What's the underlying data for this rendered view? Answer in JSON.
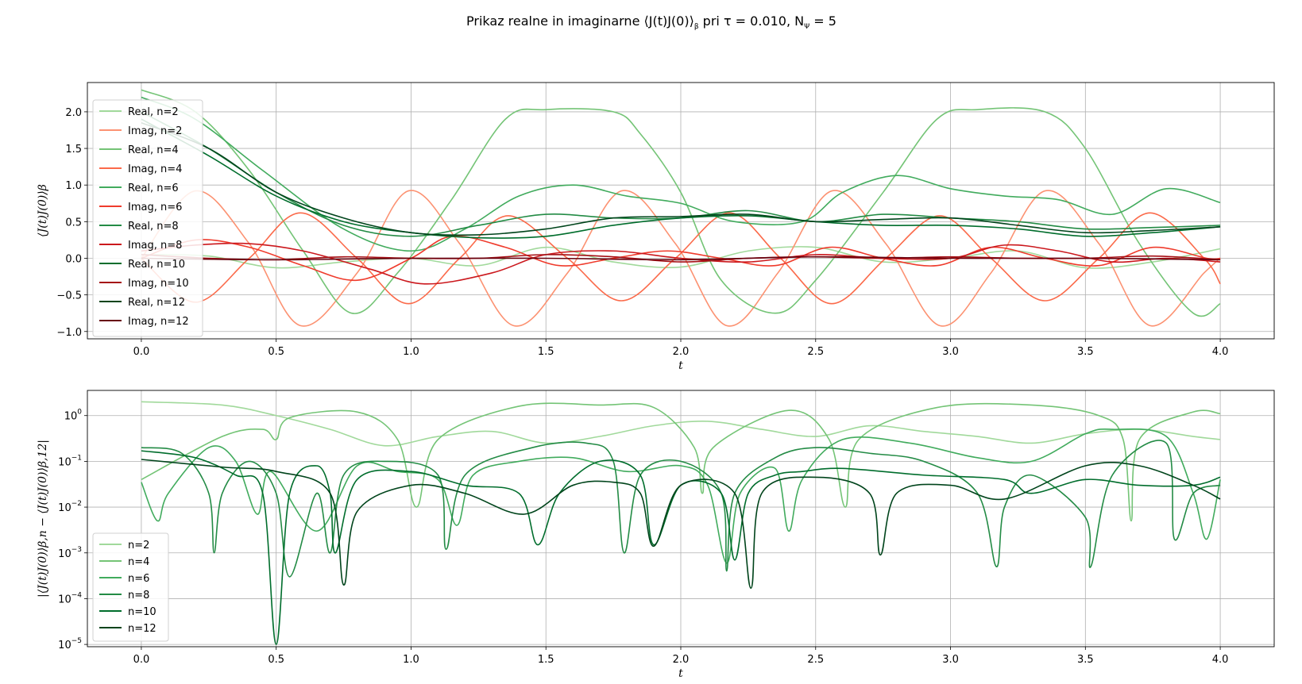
{
  "figure": {
    "title_pre": "Prikaz realne in imaginarne ⟨J(t)J(0)⟩",
    "title_sub": "β",
    "title_mid": " pri τ = 0.010, N",
    "title_sub2": "Ψ",
    "title_post": " = 5"
  },
  "chart_data": [
    {
      "type": "line",
      "xlabel": "t",
      "ylabel": "⟨J(t)J(0)⟩β",
      "xlim": [
        -0.2,
        4.2
      ],
      "ylim": [
        -1.1,
        2.4
      ],
      "xticks": [
        "0.0",
        "0.5",
        "1.0",
        "1.5",
        "2.0",
        "2.5",
        "3.0",
        "3.5",
        "4.0"
      ],
      "yticks": [
        "2.0",
        "1.5",
        "1.0",
        "0.5",
        "0.0",
        "−0.5",
        "−1.0"
      ],
      "grid": true,
      "legend_placement": "upper-left",
      "series": [
        {
          "name": "Real, n=2",
          "color": "#a1d99b",
          "x": [
            0,
            0.25,
            0.5,
            0.75,
            1.0,
            1.25,
            1.5,
            1.75,
            2.0,
            2.25,
            2.5,
            2.75,
            3.0,
            3.25,
            3.5,
            3.75,
            4.0
          ],
          "y": [
            0.05,
            0.03,
            -0.13,
            -0.05,
            0.0,
            -0.1,
            0.15,
            -0.05,
            -0.12,
            0.1,
            0.15,
            -0.05,
            0.0,
            0.1,
            -0.13,
            -0.05,
            0.13
          ]
        },
        {
          "name": "Imag, n=2",
          "color": "#fc9272",
          "x": [
            0,
            0.2,
            0.4,
            0.59,
            0.8,
            0.99,
            1.18,
            1.38,
            1.58,
            1.78,
            1.98,
            2.17,
            2.36,
            2.56,
            2.76,
            2.96,
            3.15,
            3.35,
            3.55,
            3.74,
            3.94,
            4.0
          ],
          "y": [
            0.0,
            0.92,
            0.2,
            -0.92,
            -0.2,
            0.92,
            0.2,
            -0.92,
            -0.2,
            0.92,
            0.2,
            -0.92,
            -0.2,
            0.92,
            0.2,
            -0.92,
            -0.2,
            0.92,
            0.2,
            -0.92,
            -0.2,
            0.0
          ]
        },
        {
          "name": "Real, n=4",
          "color": "#74c476",
          "x": [
            0,
            0.2,
            0.4,
            0.6,
            0.78,
            0.95,
            1.15,
            1.35,
            1.5,
            1.75,
            1.85,
            2.0,
            2.15,
            2.35,
            2.5,
            2.75,
            2.95,
            3.1,
            3.35,
            3.5,
            3.7,
            3.9,
            4.0
          ],
          "y": [
            2.3,
            2.0,
            1.2,
            0.1,
            -0.75,
            -0.2,
            0.8,
            1.9,
            2.03,
            2.0,
            1.7,
            0.9,
            -0.3,
            -0.75,
            -0.3,
            0.9,
            1.9,
            2.03,
            2.0,
            1.5,
            0.2,
            -0.75,
            -0.62
          ]
        },
        {
          "name": "Imag, n=4",
          "color": "#fb6a4a",
          "x": [
            0,
            0.2,
            0.4,
            0.59,
            0.8,
            0.99,
            1.18,
            1.36,
            1.58,
            1.78,
            1.98,
            2.18,
            2.37,
            2.56,
            2.76,
            2.96,
            3.15,
            3.35,
            3.55,
            3.74,
            3.94,
            4.0
          ],
          "y": [
            0.0,
            -0.6,
            0.0,
            0.62,
            0.0,
            -0.62,
            0.0,
            0.58,
            0.0,
            -0.58,
            0.0,
            0.62,
            0.0,
            -0.62,
            0.0,
            0.58,
            0.0,
            -0.58,
            0.0,
            0.62,
            0.0,
            -0.35
          ]
        },
        {
          "name": "Real, n=6",
          "color": "#41ab5d",
          "x": [
            0,
            0.2,
            0.45,
            0.75,
            1.0,
            1.2,
            1.4,
            1.6,
            1.8,
            2.0,
            2.2,
            2.45,
            2.6,
            2.8,
            3.0,
            3.2,
            3.4,
            3.6,
            3.8,
            4.0
          ],
          "y": [
            2.2,
            1.9,
            1.2,
            0.4,
            0.1,
            0.4,
            0.85,
            1.0,
            0.85,
            0.75,
            0.5,
            0.5,
            0.9,
            1.13,
            0.95,
            0.85,
            0.8,
            0.6,
            0.95,
            0.76
          ]
        },
        {
          "name": "Imag, n=6",
          "color": "#ef3b2c",
          "x": [
            0,
            0.2,
            0.4,
            0.6,
            0.8,
            1.0,
            1.15,
            1.35,
            1.55,
            1.75,
            1.95,
            2.15,
            2.35,
            2.55,
            2.75,
            2.95,
            3.15,
            3.35,
            3.55,
            3.75,
            3.95,
            4.0
          ],
          "y": [
            0.0,
            0.25,
            0.15,
            -0.1,
            -0.3,
            0.0,
            0.3,
            0.15,
            -0.1,
            0.0,
            0.1,
            0.0,
            -0.1,
            0.15,
            0.0,
            -0.1,
            0.15,
            0.0,
            -0.1,
            0.15,
            0.0,
            0.0
          ]
        },
        {
          "name": "Real, n=8",
          "color": "#238b45",
          "x": [
            0,
            0.25,
            0.5,
            0.75,
            1.0,
            1.25,
            1.5,
            1.75,
            2.0,
            2.25,
            2.5,
            2.75,
            3.0,
            3.25,
            3.5,
            3.75,
            4.0
          ],
          "y": [
            2.0,
            1.5,
            0.9,
            0.45,
            0.3,
            0.45,
            0.6,
            0.55,
            0.55,
            0.65,
            0.5,
            0.6,
            0.55,
            0.5,
            0.4,
            0.42,
            0.45
          ]
        },
        {
          "name": "Imag, n=8",
          "color": "#cb181d",
          "x": [
            0,
            0.2,
            0.4,
            0.6,
            0.85,
            1.05,
            1.3,
            1.5,
            1.75,
            2.0,
            2.25,
            2.5,
            2.75,
            3.0,
            3.2,
            3.4,
            3.6,
            3.8,
            4.0
          ],
          "y": [
            0.1,
            0.18,
            0.2,
            0.1,
            -0.15,
            -0.35,
            -0.2,
            0.05,
            0.1,
            0.0,
            -0.05,
            0.05,
            0.0,
            0.0,
            0.18,
            0.1,
            -0.05,
            0.0,
            -0.05
          ]
        },
        {
          "name": "Real, n=10",
          "color": "#006d2c",
          "x": [
            0,
            0.25,
            0.5,
            0.75,
            1.0,
            1.25,
            1.5,
            1.75,
            2.0,
            2.25,
            2.5,
            2.75,
            3.0,
            3.25,
            3.5,
            3.75,
            4.0
          ],
          "y": [
            1.9,
            1.4,
            0.85,
            0.5,
            0.35,
            0.28,
            0.3,
            0.45,
            0.55,
            0.58,
            0.5,
            0.45,
            0.45,
            0.4,
            0.3,
            0.35,
            0.43
          ]
        },
        {
          "name": "Imag, n=10",
          "color": "#a50f15",
          "x": [
            0,
            0.25,
            0.5,
            0.75,
            1.0,
            1.25,
            1.5,
            1.75,
            2.0,
            2.25,
            2.5,
            2.75,
            3.0,
            3.25,
            3.5,
            3.75,
            4.0
          ],
          "y": [
            0.05,
            0.0,
            -0.02,
            0.02,
            0.0,
            0.0,
            0.05,
            0.02,
            -0.05,
            0.0,
            0.02,
            0.0,
            0.02,
            0.0,
            0.0,
            0.03,
            -0.02
          ]
        },
        {
          "name": "Real, n=12",
          "color": "#00441b",
          "x": [
            0,
            0.25,
            0.5,
            0.75,
            1.0,
            1.25,
            1.5,
            1.75,
            2.0,
            2.25,
            2.5,
            2.75,
            3.0,
            3.25,
            3.5,
            3.75,
            4.0
          ],
          "y": [
            1.85,
            1.5,
            0.9,
            0.55,
            0.35,
            0.32,
            0.4,
            0.55,
            0.57,
            0.6,
            0.5,
            0.53,
            0.55,
            0.45,
            0.35,
            0.38,
            0.43
          ]
        },
        {
          "name": "Imag, n=12",
          "color": "#67000d",
          "x": [
            0,
            0.5,
            1.0,
            1.5,
            2.0,
            2.5,
            3.0,
            3.5,
            4.0
          ],
          "y": [
            0.0,
            -0.02,
            0.0,
            0.0,
            -0.02,
            0.02,
            0.0,
            0.0,
            -0.02
          ]
        }
      ]
    },
    {
      "type": "line",
      "xlabel": "t",
      "ylabel": "|⟨J(t)J(0)⟩β,n − ⟨J(t)J(0)⟩β,12|",
      "yscale": "log",
      "xlim": [
        -0.2,
        4.2
      ],
      "ylim_exp": [
        -5.05,
        0.55
      ],
      "xticks": [
        "0.0",
        "0.5",
        "1.0",
        "1.5",
        "2.0",
        "2.5",
        "3.0",
        "3.5",
        "4.0"
      ],
      "yticks": [
        "0",
        "-1",
        "-2",
        "-3",
        "-4",
        "-5"
      ],
      "grid": true,
      "legend_placement": "lower-left",
      "series": [
        {
          "name": "n=2",
          "color": "#a1d99b",
          "x": [
            0,
            0.3,
            0.5,
            0.7,
            0.9,
            1.1,
            1.3,
            1.5,
            1.7,
            1.9,
            2.1,
            2.3,
            2.5,
            2.7,
            2.9,
            3.1,
            3.3,
            3.5,
            3.7,
            3.9,
            4.0
          ],
          "y": [
            2.0,
            1.7,
            1.0,
            0.5,
            0.22,
            0.35,
            0.45,
            0.25,
            0.35,
            0.6,
            0.75,
            0.5,
            0.35,
            0.6,
            0.45,
            0.35,
            0.25,
            0.4,
            0.5,
            0.35,
            0.3
          ]
        },
        {
          "name": "n=4",
          "color": "#74c476",
          "x": [
            0,
            0.3,
            0.45,
            0.5,
            0.55,
            0.8,
            0.95,
            1.02,
            1.1,
            1.4,
            1.7,
            1.9,
            2.05,
            2.08,
            2.12,
            2.4,
            2.55,
            2.61,
            2.66,
            2.95,
            3.3,
            3.55,
            3.64,
            3.67,
            3.7,
            3.9,
            4.0
          ],
          "y": [
            0.04,
            0.35,
            0.5,
            0.3,
            0.9,
            1.2,
            0.3,
            0.01,
            0.3,
            1.6,
            1.7,
            1.5,
            0.2,
            0.02,
            0.2,
            1.3,
            0.3,
            0.01,
            0.3,
            1.5,
            1.7,
            1.0,
            0.3,
            0.005,
            0.3,
            1.2,
            1.1
          ]
        },
        {
          "name": "n=6",
          "color": "#41ab5d",
          "x": [
            0,
            0.06,
            0.1,
            0.25,
            0.35,
            0.43,
            0.48,
            0.65,
            0.8,
            0.95,
            1.1,
            1.17,
            1.23,
            1.4,
            1.6,
            1.8,
            2.0,
            2.1,
            2.17,
            2.22,
            2.35,
            2.4,
            2.45,
            2.6,
            2.85,
            3.1,
            3.3,
            3.5,
            3.6,
            3.8,
            3.9,
            3.95,
            4.0
          ],
          "y": [
            0.035,
            0.005,
            0.02,
            0.2,
            0.1,
            0.007,
            0.06,
            0.003,
            0.08,
            0.06,
            0.04,
            0.004,
            0.05,
            0.1,
            0.12,
            0.06,
            0.08,
            0.03,
            0.0006,
            0.02,
            0.07,
            0.003,
            0.04,
            0.3,
            0.25,
            0.12,
            0.1,
            0.4,
            0.5,
            0.35,
            0.02,
            0.002,
            0.04
          ]
        },
        {
          "name": "n=8",
          "color": "#238b45",
          "x": [
            0,
            0.15,
            0.25,
            0.27,
            0.3,
            0.4,
            0.5,
            0.55,
            0.65,
            0.7,
            0.75,
            0.9,
            1.1,
            1.13,
            1.2,
            1.45,
            1.65,
            1.75,
            1.79,
            1.85,
            2.0,
            2.15,
            2.17,
            2.2,
            2.35,
            2.5,
            2.7,
            2.9,
            3.1,
            3.17,
            3.2,
            3.3,
            3.5,
            3.52,
            3.6,
            3.8,
            3.83,
            3.9,
            4.0
          ],
          "y": [
            0.2,
            0.15,
            0.02,
            0.001,
            0.02,
            0.1,
            0.02,
            0.0003,
            0.02,
            0.001,
            0.05,
            0.1,
            0.05,
            0.0012,
            0.05,
            0.2,
            0.25,
            0.1,
            0.001,
            0.05,
            0.1,
            0.02,
            0.0004,
            0.02,
            0.12,
            0.2,
            0.15,
            0.1,
            0.02,
            0.0005,
            0.01,
            0.05,
            0.006,
            0.0005,
            0.05,
            0.25,
            0.002,
            0.02,
            0.03
          ]
        },
        {
          "name": "n=10",
          "color": "#006d2c",
          "x": [
            0,
            0.2,
            0.35,
            0.45,
            0.5,
            0.55,
            0.65,
            0.7,
            0.72,
            0.8,
            1.0,
            1.2,
            1.4,
            1.47,
            1.55,
            1.7,
            1.85,
            1.9,
            2.0,
            2.15,
            2.2,
            2.25,
            2.35,
            2.45,
            2.6,
            2.9,
            3.2,
            3.3,
            3.5,
            3.7,
            3.9,
            4.0
          ],
          "y": [
            0.17,
            0.12,
            0.05,
            0.02,
            1e-05,
            0.02,
            0.08,
            0.02,
            0.001,
            0.04,
            0.06,
            0.03,
            0.02,
            0.0015,
            0.02,
            0.1,
            0.05,
            0.0015,
            0.03,
            0.02,
            0.0007,
            0.02,
            0.05,
            0.06,
            0.07,
            0.05,
            0.04,
            0.02,
            0.04,
            0.03,
            0.03,
            0.045
          ]
        },
        {
          "name": "n=12",
          "color": "#00441b",
          "x": [
            0,
            0.3,
            0.5,
            0.7,
            0.75,
            0.8,
            1.0,
            1.2,
            1.42,
            1.6,
            1.75,
            1.85,
            1.9,
            2.0,
            2.2,
            2.26,
            2.3,
            2.5,
            2.7,
            2.74,
            2.8,
            3.0,
            3.2,
            3.5,
            3.7,
            3.9,
            4.0
          ],
          "y": [
            0.11,
            0.075,
            0.06,
            0.02,
            0.0002,
            0.008,
            0.03,
            0.02,
            0.007,
            0.03,
            0.035,
            0.02,
            0.0014,
            0.03,
            0.02,
            0.00017,
            0.02,
            0.045,
            0.02,
            0.0009,
            0.02,
            0.03,
            0.015,
            0.08,
            0.08,
            0.03,
            0.015
          ]
        }
      ]
    }
  ]
}
